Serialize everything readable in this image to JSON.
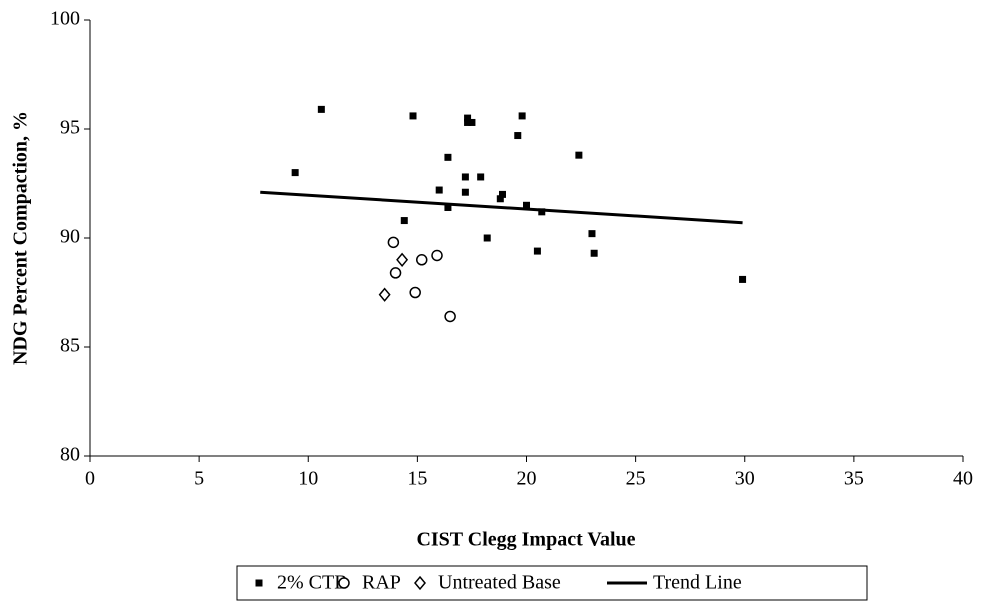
{
  "chart_data": {
    "type": "scatter",
    "xlabel": "CIST Clegg Impact Value",
    "ylabel": "NDG Percent Compaction, %",
    "xlim": [
      0,
      40
    ],
    "xticks": [
      0,
      5,
      10,
      15,
      20,
      25,
      30,
      35,
      40
    ],
    "ylim": [
      80,
      100
    ],
    "yticks": [
      80,
      85,
      90,
      95,
      100
    ],
    "grid": false,
    "legend": "bottom",
    "series": [
      {
        "name": "2% CTB",
        "color": "#000000",
        "marker": "square",
        "x": [
          9.4,
          10.6,
          14.4,
          14.8,
          16.0,
          16.4,
          16.4,
          17.2,
          17.2,
          17.3,
          17.3,
          17.5,
          17.9,
          18.2,
          18.8,
          18.9,
          19.6,
          19.8,
          20.0,
          20.5,
          20.7,
          22.4,
          23.0,
          23.1,
          29.9
        ],
        "values": [
          93.0,
          95.9,
          90.8,
          95.6,
          92.2,
          93.7,
          91.4,
          92.8,
          92.1,
          95.5,
          95.3,
          95.3,
          92.8,
          90.0,
          91.8,
          92.0,
          94.7,
          95.6,
          91.5,
          89.4,
          91.2,
          93.8,
          90.2,
          89.3,
          88.1
        ]
      },
      {
        "name": "RAP",
        "color": "#000000",
        "marker": "circle",
        "x": [
          13.9,
          14.0,
          14.9,
          15.2,
          15.9,
          16.5
        ],
        "values": [
          89.8,
          88.4,
          87.5,
          89.0,
          89.2,
          86.4
        ]
      },
      {
        "name": "Untreated Base",
        "color": "#000000",
        "marker": "diamond",
        "x": [
          13.5,
          14.3
        ],
        "values": [
          87.4,
          89.0
        ]
      },
      {
        "name": "Trend Line",
        "color": "#000000",
        "marker": "line",
        "x": [
          7.8,
          29.9
        ],
        "values": [
          92.1,
          90.7
        ]
      }
    ]
  }
}
